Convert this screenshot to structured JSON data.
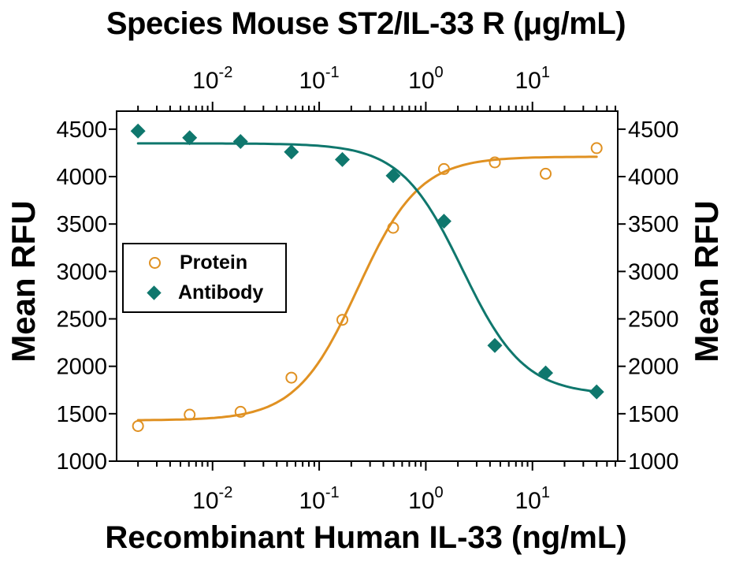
{
  "figure": {
    "title": "Species Mouse ST2/IL-33 R (μg/mL)",
    "x_axis_label": "Recombinant Human IL-33 (ng/mL)",
    "y_axis_left_label": "Mean RFU",
    "y_axis_right_label": "Mean RFU"
  },
  "legend": {
    "items": [
      {
        "label": "Protein",
        "marker": "open-circle",
        "color": "#E09122"
      },
      {
        "label": "Antibody",
        "marker": "filled-diamond",
        "color": "#0F776D"
      }
    ]
  },
  "chart_data": {
    "type": "scatter",
    "title": "Species Mouse ST2/IL-33 R (μg/mL)",
    "xlabel": "Recombinant Human IL-33 (ng/mL)",
    "ylabel": "Mean RFU",
    "x_scale": "log",
    "xlim": [
      0.00126,
      63.1
    ],
    "ylim": [
      1000,
      4690
    ],
    "y_ticks": [
      1000,
      1500,
      2000,
      2500,
      3000,
      3500,
      4000,
      4500
    ],
    "x_decade_exponents": [
      -2,
      -1,
      0,
      1
    ],
    "top_axis_mirrored": true,
    "right_axis_mirrored": true,
    "grid": false,
    "legend_position": "upper-left-inside",
    "x": [
      0.002,
      0.0061,
      0.0183,
      0.0549,
      0.165,
      0.494,
      1.48,
      4.44,
      13.3,
      40
    ],
    "series": [
      {
        "name": "Protein",
        "marker": "open-circle",
        "color": "#E09122",
        "values": [
          1370,
          1490,
          1520,
          1880,
          2490,
          3460,
          4080,
          4150,
          4030,
          4300
        ],
        "fit": {
          "model": "4PL",
          "bottom": 1430,
          "top": 4210,
          "ec50": 0.23,
          "hill": 1.5
        }
      },
      {
        "name": "Antibody",
        "marker": "filled-diamond",
        "color": "#0F776D",
        "values": [
          4480,
          4410,
          4370,
          4260,
          4180,
          4010,
          3530,
          2220,
          1930,
          1730
        ],
        "fit": {
          "model": "4PL",
          "bottom": 1700,
          "top": 4350,
          "ec50": 2.2,
          "hill": -1.5
        }
      }
    ]
  }
}
